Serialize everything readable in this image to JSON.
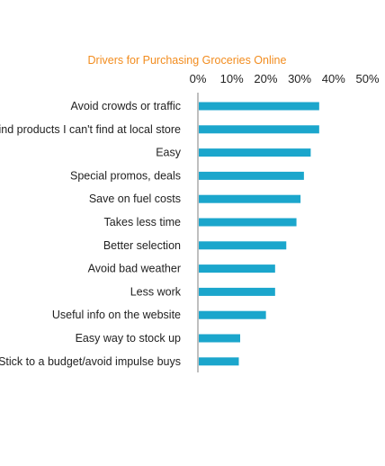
{
  "chart_data": {
    "type": "bar",
    "orientation": "horizontal",
    "title": "Drivers for Purchasing Groceries Online",
    "categories": [
      "Avoid crowds or traffic",
      "Find products I can't find at local store",
      "Easy",
      "Special promos, deals",
      "Save on fuel costs",
      "Takes less time",
      "Better selection",
      "Avoid bad weather",
      "Less work",
      "Useful info on the website",
      "Easy way to stock up",
      "Stick to a budget/avoid impulse buys"
    ],
    "values": [
      35.5,
      35.5,
      33,
      31,
      30,
      28.8,
      25.8,
      22.5,
      22.5,
      19.8,
      12.2,
      11.8
    ],
    "x_ticks": [
      "0%",
      "10%",
      "20%",
      "30%",
      "40%",
      "50%"
    ],
    "xlim": [
      0,
      50
    ],
    "xlabel": "",
    "ylabel": "",
    "grid": false,
    "legend": "none",
    "colors": {
      "bar": "#1ba6cc",
      "title": "#f28c1e",
      "axis": "#aaaaaa"
    }
  }
}
